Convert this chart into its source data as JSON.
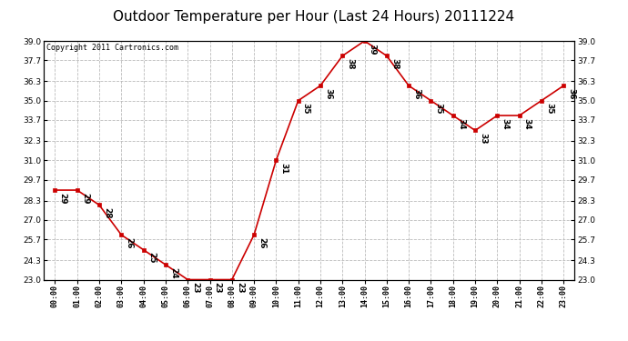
{
  "title": "Outdoor Temperature per Hour (Last 24 Hours) 20111224",
  "copyright": "Copyright 2011 Cartronics.com",
  "hours": [
    "00:00",
    "01:00",
    "02:00",
    "03:00",
    "04:00",
    "05:00",
    "06:00",
    "07:00",
    "08:00",
    "09:00",
    "10:00",
    "11:00",
    "12:00",
    "13:00",
    "14:00",
    "15:00",
    "16:00",
    "17:00",
    "18:00",
    "19:00",
    "20:00",
    "21:00",
    "22:00",
    "23:00"
  ],
  "temperatures": [
    29,
    29,
    28,
    26,
    25,
    24,
    23,
    23,
    23,
    26,
    31,
    35,
    36,
    38,
    39,
    38,
    36,
    35,
    34,
    33,
    34,
    34,
    35,
    36
  ],
  "line_color": "#cc0000",
  "marker_color": "#cc0000",
  "bg_color": "#ffffff",
  "grid_color": "#bbbbbb",
  "ylim_min": 23.0,
  "ylim_max": 39.0,
  "yticks": [
    23.0,
    24.3,
    25.7,
    27.0,
    28.3,
    29.7,
    31.0,
    32.3,
    33.7,
    35.0,
    36.3,
    37.7,
    39.0
  ],
  "title_fontsize": 11,
  "annotation_fontsize": 6.5,
  "copyright_fontsize": 6
}
